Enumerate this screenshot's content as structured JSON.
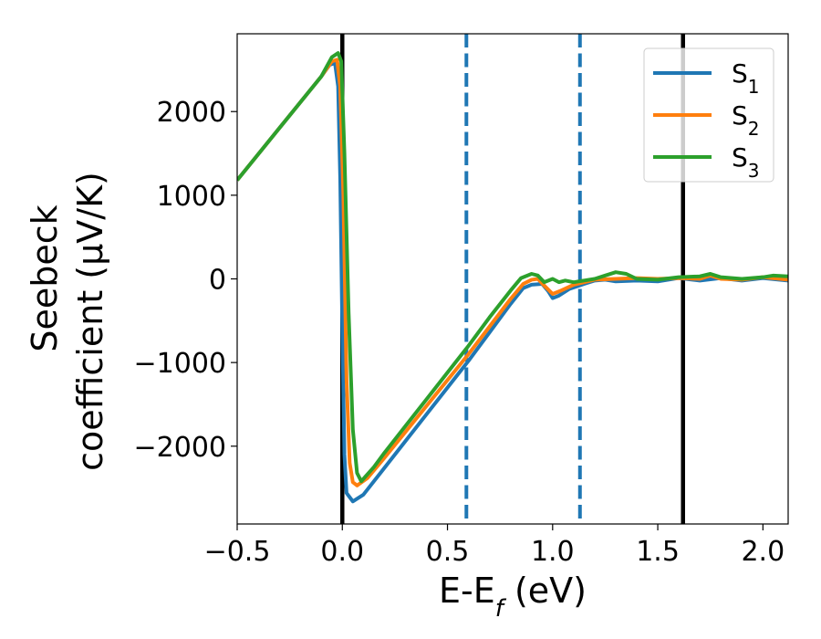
{
  "chart_data": {
    "type": "line",
    "xlabel": "E-E",
    "xlabel_sub": "f",
    "xlabel_unit": " (eV)",
    "ylabel_line1": "Seebeck",
    "ylabel_line2": "coefficient  (μV/K)",
    "xlim": [
      -0.5,
      2.12
    ],
    "ylim": [
      -2930,
      2930
    ],
    "xticks": [
      -0.5,
      0.0,
      0.5,
      1.0,
      1.5,
      2.0
    ],
    "xtick_labels": [
      "−0.5",
      "0.0",
      "0.5",
      "1.0",
      "1.5",
      "2.0"
    ],
    "yticks": [
      -2000,
      -1000,
      0,
      1000,
      2000
    ],
    "ytick_labels": [
      "−2000",
      "−1000",
      "0",
      "1000",
      "2000"
    ],
    "grid": false,
    "legend_position": "top-right",
    "vertical_lines": [
      {
        "x": 0.0,
        "style": "solid",
        "color": "#000000"
      },
      {
        "x": 1.62,
        "style": "solid",
        "color": "#000000"
      },
      {
        "x": 0.59,
        "style": "dashed",
        "color": "#1f77b4"
      },
      {
        "x": 1.13,
        "style": "dashed",
        "color": "#1f77b4"
      }
    ],
    "series": [
      {
        "name": "S",
        "name_sub": "1",
        "color": "#1f77b4",
        "points": [
          [
            -0.5,
            1180
          ],
          [
            -0.3,
            1800
          ],
          [
            -0.1,
            2420
          ],
          [
            -0.06,
            2560
          ],
          [
            -0.035,
            2580
          ],
          [
            -0.02,
            2300
          ],
          [
            -0.01,
            1200
          ],
          [
            0.0,
            -600
          ],
          [
            0.01,
            -2100
          ],
          [
            0.02,
            -2560
          ],
          [
            0.05,
            -2660
          ],
          [
            0.1,
            -2580
          ],
          [
            0.2,
            -2260
          ],
          [
            0.3,
            -1940
          ],
          [
            0.4,
            -1620
          ],
          [
            0.5,
            -1300
          ],
          [
            0.6,
            -980
          ],
          [
            0.7,
            -640
          ],
          [
            0.8,
            -300
          ],
          [
            0.86,
            -110
          ],
          [
            0.9,
            -70
          ],
          [
            0.95,
            -60
          ],
          [
            0.98,
            -150
          ],
          [
            1.0,
            -230
          ],
          [
            1.03,
            -200
          ],
          [
            1.08,
            -120
          ],
          [
            1.15,
            -60
          ],
          [
            1.2,
            -20
          ],
          [
            1.25,
            -10
          ],
          [
            1.3,
            -30
          ],
          [
            1.4,
            -20
          ],
          [
            1.5,
            -30
          ],
          [
            1.6,
            10
          ],
          [
            1.7,
            -20
          ],
          [
            1.8,
            10
          ],
          [
            1.9,
            -20
          ],
          [
            2.0,
            10
          ],
          [
            2.12,
            -20
          ]
        ]
      },
      {
        "name": "S",
        "name_sub": "2",
        "color": "#ff7f0e",
        "points": [
          [
            -0.5,
            1180
          ],
          [
            -0.3,
            1800
          ],
          [
            -0.1,
            2420
          ],
          [
            -0.05,
            2600
          ],
          [
            -0.025,
            2620
          ],
          [
            -0.01,
            2300
          ],
          [
            0.005,
            1000
          ],
          [
            0.02,
            -1200
          ],
          [
            0.035,
            -2200
          ],
          [
            0.05,
            -2430
          ],
          [
            0.07,
            -2470
          ],
          [
            0.12,
            -2380
          ],
          [
            0.2,
            -2140
          ],
          [
            0.3,
            -1830
          ],
          [
            0.4,
            -1520
          ],
          [
            0.5,
            -1210
          ],
          [
            0.6,
            -900
          ],
          [
            0.7,
            -570
          ],
          [
            0.8,
            -240
          ],
          [
            0.86,
            -60
          ],
          [
            0.9,
            -10
          ],
          [
            0.93,
            0
          ],
          [
            0.96,
            -80
          ],
          [
            1.0,
            -180
          ],
          [
            1.04,
            -140
          ],
          [
            1.1,
            -70
          ],
          [
            1.15,
            -40
          ],
          [
            1.2,
            -10
          ],
          [
            1.3,
            0
          ],
          [
            1.4,
            10
          ],
          [
            1.5,
            0
          ],
          [
            1.6,
            10
          ],
          [
            1.7,
            0
          ],
          [
            1.75,
            40
          ],
          [
            1.8,
            0
          ],
          [
            1.9,
            -10
          ],
          [
            2.0,
            20
          ],
          [
            2.12,
            -10
          ]
        ]
      },
      {
        "name": "S",
        "name_sub": "3",
        "color": "#2ca02c",
        "points": [
          [
            -0.5,
            1180
          ],
          [
            -0.3,
            1800
          ],
          [
            -0.1,
            2420
          ],
          [
            -0.05,
            2650
          ],
          [
            -0.02,
            2700
          ],
          [
            -0.005,
            2600
          ],
          [
            0.01,
            1500
          ],
          [
            0.03,
            -400
          ],
          [
            0.05,
            -1800
          ],
          [
            0.07,
            -2320
          ],
          [
            0.09,
            -2420
          ],
          [
            0.15,
            -2250
          ],
          [
            0.2,
            -2080
          ],
          [
            0.3,
            -1760
          ],
          [
            0.4,
            -1440
          ],
          [
            0.5,
            -1120
          ],
          [
            0.6,
            -800
          ],
          [
            0.7,
            -460
          ],
          [
            0.8,
            -140
          ],
          [
            0.85,
            10
          ],
          [
            0.9,
            60
          ],
          [
            0.93,
            40
          ],
          [
            0.96,
            -40
          ],
          [
            1.0,
            0
          ],
          [
            1.03,
            -40
          ],
          [
            1.06,
            -20
          ],
          [
            1.1,
            -40
          ],
          [
            1.15,
            -20
          ],
          [
            1.2,
            0
          ],
          [
            1.25,
            40
          ],
          [
            1.3,
            80
          ],
          [
            1.35,
            60
          ],
          [
            1.4,
            0
          ],
          [
            1.5,
            -10
          ],
          [
            1.6,
            20
          ],
          [
            1.7,
            30
          ],
          [
            1.75,
            60
          ],
          [
            1.8,
            20
          ],
          [
            1.9,
            0
          ],
          [
            2.0,
            20
          ],
          [
            2.05,
            40
          ],
          [
            2.12,
            30
          ]
        ]
      }
    ]
  }
}
